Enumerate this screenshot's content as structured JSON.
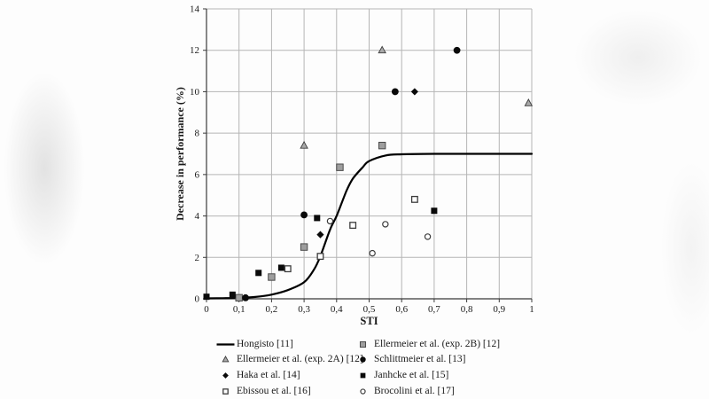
{
  "chart_data": {
    "type": "scatter",
    "title": "",
    "xlabel": "STI",
    "ylabel": "Decrease in performance (%)",
    "xlim": [
      0,
      1
    ],
    "ylim": [
      0,
      14
    ],
    "grid": true,
    "x_ticks": [
      {
        "value": 0,
        "label": "0"
      },
      {
        "value": 0.1,
        "label": "0,1"
      },
      {
        "value": 0.2,
        "label": "0,2"
      },
      {
        "value": 0.3,
        "label": "0,3"
      },
      {
        "value": 0.4,
        "label": "0,4"
      },
      {
        "value": 0.5,
        "label": "0,5"
      },
      {
        "value": 0.6,
        "label": "0,6"
      },
      {
        "value": 0.7,
        "label": "0,7"
      },
      {
        "value": 0.8,
        "label": "0,8"
      },
      {
        "value": 0.9,
        "label": "0,9"
      },
      {
        "value": 1,
        "label": "1"
      }
    ],
    "y_ticks": [
      {
        "value": 0,
        "label": "0"
      },
      {
        "value": 2,
        "label": "2"
      },
      {
        "value": 4,
        "label": "4"
      },
      {
        "value": 6,
        "label": "6"
      },
      {
        "value": 8,
        "label": "8"
      },
      {
        "value": 10,
        "label": "10"
      },
      {
        "value": 12,
        "label": "12"
      },
      {
        "value": 14,
        "label": "14"
      }
    ],
    "curve": {
      "name": "Hongisto [11]",
      "color": "#000000",
      "plateau": 7.0,
      "samples": [
        [
          0,
          0.02
        ],
        [
          0.05,
          0.03
        ],
        [
          0.1,
          0.05
        ],
        [
          0.15,
          0.09
        ],
        [
          0.2,
          0.2
        ],
        [
          0.25,
          0.42
        ],
        [
          0.3,
          0.8
        ],
        [
          0.33,
          1.4
        ],
        [
          0.35,
          2.05
        ],
        [
          0.38,
          3.35
        ],
        [
          0.4,
          4.0
        ],
        [
          0.43,
          5.2
        ],
        [
          0.45,
          5.8
        ],
        [
          0.48,
          6.35
        ],
        [
          0.5,
          6.65
        ],
        [
          0.55,
          6.92
        ],
        [
          0.6,
          6.98
        ],
        [
          0.7,
          7.0
        ],
        [
          0.85,
          7.0
        ],
        [
          1.0,
          7.0
        ]
      ]
    },
    "series": [
      {
        "name": "Ellermeier et al. (exp. 2A) [12]",
        "marker": "triangle-gray",
        "points": [
          [
            0.3,
            7.4
          ],
          [
            0.54,
            12.0
          ],
          [
            0.99,
            9.45
          ]
        ]
      },
      {
        "name": "Ellermeier et al. (exp. 2B) [12]",
        "marker": "square-gray",
        "points": [
          [
            0.1,
            0.05
          ],
          [
            0.2,
            1.05
          ],
          [
            0.3,
            2.5
          ],
          [
            0.41,
            6.35
          ],
          [
            0.54,
            7.4
          ]
        ]
      },
      {
        "name": "Schlittmeier et al. [13]",
        "marker": "circle-filled",
        "points": [
          [
            0.12,
            0.05
          ],
          [
            0.3,
            4.05
          ],
          [
            0.58,
            10.0
          ],
          [
            0.77,
            12.0
          ]
        ]
      },
      {
        "name": "Haka et al. [14]",
        "marker": "diamond-filled",
        "points": [
          [
            0.35,
            3.1
          ],
          [
            0.64,
            10.0
          ]
        ]
      },
      {
        "name": "Janhcke et al. [15]",
        "marker": "square-filled",
        "points": [
          [
            0.0,
            0.1
          ],
          [
            0.08,
            0.2
          ],
          [
            0.16,
            1.25
          ],
          [
            0.23,
            1.5
          ],
          [
            0.34,
            3.9
          ],
          [
            0.7,
            4.25
          ]
        ]
      },
      {
        "name": "Ebissou et al. [16]",
        "marker": "square-open",
        "points": [
          [
            0.25,
            1.45
          ],
          [
            0.35,
            2.05
          ],
          [
            0.45,
            3.55
          ],
          [
            0.64,
            4.8
          ]
        ]
      },
      {
        "name": "Brocolini et al. [17]",
        "marker": "circle-open",
        "points": [
          [
            0.38,
            3.75
          ],
          [
            0.51,
            2.2
          ],
          [
            0.55,
            3.6
          ],
          [
            0.68,
            3.0
          ]
        ]
      }
    ],
    "legend": {
      "position": "below-chart, two columns",
      "columns": [
        {
          "entries": [
            {
              "label": "Hongisto [11]",
              "marker": "line"
            },
            {
              "label": "Ellermeier et al. (exp. 2A) [12]",
              "marker": "triangle-gray"
            },
            {
              "label": "Haka et al. [14]",
              "marker": "diamond-filled"
            },
            {
              "label": "Ebissou et al. [16]",
              "marker": "square-open"
            }
          ]
        },
        {
          "entries": [
            {
              "label": "Ellermeier et al. (exp. 2B) [12]",
              "marker": "square-gray"
            },
            {
              "label": "Schlittmeier et al. [13]",
              "marker": "circle-filled"
            },
            {
              "label": "Janhcke et al. [15]",
              "marker": "square-filled"
            },
            {
              "label": "Brocolini et al. [17]",
              "marker": "circle-open"
            }
          ]
        }
      ]
    },
    "colors": {
      "curve": "#000000",
      "grid": "#b5b5b5",
      "axis": "#3a3a3a",
      "marker_black": "#0a0a0a",
      "marker_gray_fill": "#9e9e9e",
      "marker_gray_triangle": "#a9a9a9",
      "marker_stroke": "#3c3c3c",
      "open_fill": "#ffffff"
    }
  }
}
